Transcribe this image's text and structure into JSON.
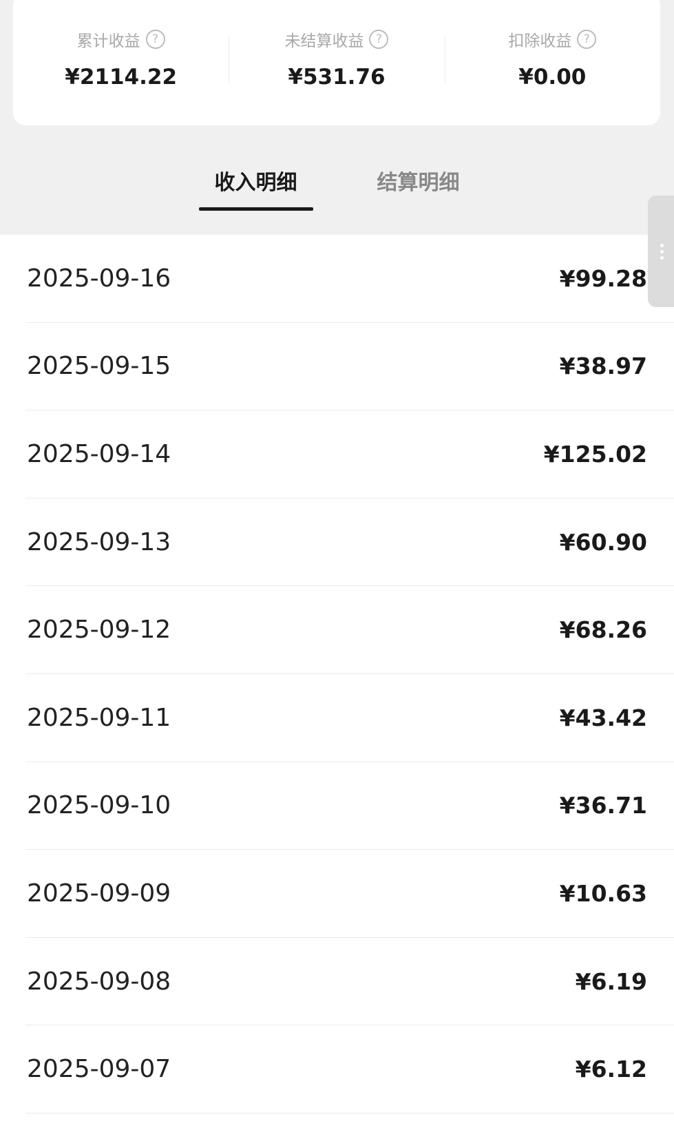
{
  "summary": [
    {
      "label": "累计收益",
      "value": "¥2114.22",
      "icon": "question-circle-icon"
    },
    {
      "label": "未结算收益",
      "value": "¥531.76",
      "icon": "question-circle-icon"
    },
    {
      "label": "扣除收益",
      "value": "¥0.00",
      "icon": "question-circle-icon"
    }
  ],
  "help_glyph": "?",
  "tabs": [
    {
      "label": "收入明细",
      "active": true
    },
    {
      "label": "结算明细",
      "active": false
    }
  ],
  "rows": [
    {
      "date": "2025-09-16",
      "amount": "¥99.28"
    },
    {
      "date": "2025-09-15",
      "amount": "¥38.97"
    },
    {
      "date": "2025-09-14",
      "amount": "¥125.02"
    },
    {
      "date": "2025-09-13",
      "amount": "¥60.90"
    },
    {
      "date": "2025-09-12",
      "amount": "¥68.26"
    },
    {
      "date": "2025-09-11",
      "amount": "¥43.42"
    },
    {
      "date": "2025-09-10",
      "amount": "¥36.71"
    },
    {
      "date": "2025-09-09",
      "amount": "¥10.63"
    },
    {
      "date": "2025-09-08",
      "amount": "¥6.19"
    },
    {
      "date": "2025-09-07",
      "amount": "¥6.12"
    }
  ]
}
